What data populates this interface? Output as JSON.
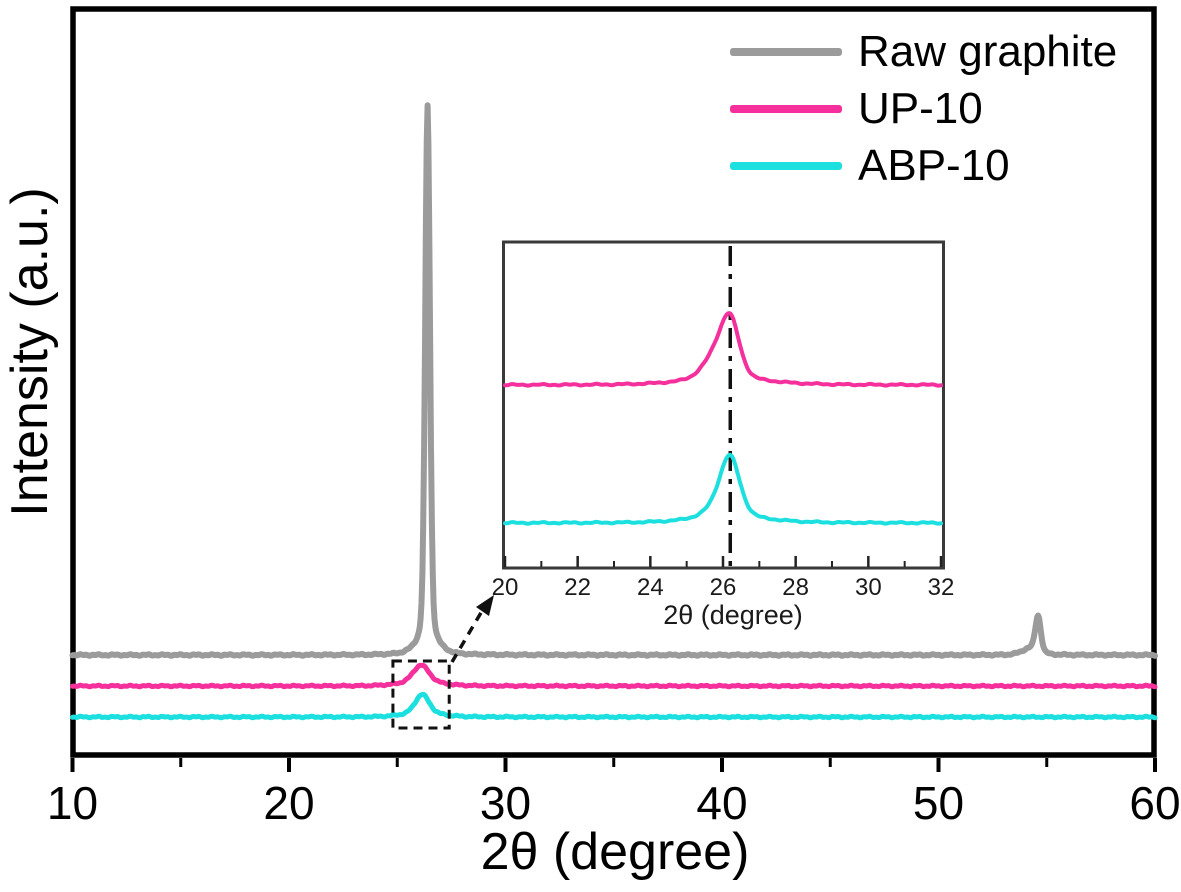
{
  "chart_data": {
    "type": "line",
    "description": "XRD patterns (intensity vs 2-theta) of three graphite samples, stacked traces",
    "title": "",
    "xlabel": "2θ (degree)",
    "ylabel": "Intensity (a.u.)",
    "x_range": [
      10,
      60
    ],
    "x_major_ticks": [
      10,
      20,
      30,
      40,
      50,
      60
    ],
    "x_minor_ticks": [
      15,
      25,
      35,
      45,
      55
    ],
    "y_ticks": "none (arbitrary units)",
    "grid": "off",
    "legend_position": "top-right",
    "series": [
      {
        "name": "Raw graphite",
        "color": "#9b9b9b",
        "trace_position": "top",
        "peaks": [
          {
            "center": 26.4,
            "rel_height": 1.0,
            "fwhm_deg": 0.26
          },
          {
            "center": 26.4,
            "rel_height": 0.022,
            "fwhm_deg": 1.2
          },
          {
            "center": 54.6,
            "rel_height": 0.066,
            "fwhm_deg": 0.3
          },
          {
            "center": 54.25,
            "rel_height": 0.012,
            "fwhm_deg": 0.9
          }
        ]
      },
      {
        "name": "UP-10",
        "color": "#f5309c",
        "trace_position": "middle",
        "peaks": [
          {
            "center": 26.1,
            "rel_height": 0.032,
            "fwhm_deg": 0.85
          },
          {
            "center": 26.1,
            "rel_height": 0.007,
            "fwhm_deg": 2.2
          }
        ]
      },
      {
        "name": "ABP-10",
        "color": "#1cdfdf",
        "trace_position": "bottom",
        "peaks": [
          {
            "center": 26.15,
            "rel_height": 0.035,
            "fwhm_deg": 0.75
          },
          {
            "center": 26.15,
            "rel_height": 0.007,
            "fwhm_deg": 2.0
          }
        ]
      }
    ],
    "inset": {
      "x_range": [
        20,
        32
      ],
      "x_major_ticks": [
        20,
        22,
        24,
        26,
        28,
        30,
        32
      ],
      "x_minor_ticks": [
        21,
        23,
        25,
        27,
        29,
        31
      ],
      "xlabel": "2θ (degree)",
      "reference_line_2theta": 26.2,
      "reference_line_style": "vertical dash-dot",
      "series": [
        {
          "name": "UP-10",
          "color": "#f5309c",
          "peaks": [
            {
              "center": 26.2,
              "rel_height": 1.0,
              "fwhm_deg": 0.6
            },
            {
              "center": 25.82,
              "rel_height": 0.45,
              "fwhm_deg": 0.85
            },
            {
              "center": 26.1,
              "rel_height": 0.09,
              "fwhm_deg": 2.8
            }
          ]
        },
        {
          "name": "ABP-10",
          "color": "#1cdfdf",
          "peaks": [
            {
              "center": 26.2,
              "rel_height": 1.0,
              "fwhm_deg": 0.62
            },
            {
              "center": 25.95,
              "rel_height": 0.25,
              "fwhm_deg": 0.9
            },
            {
              "center": 26.2,
              "rel_height": 0.09,
              "fwhm_deg": 2.5
            }
          ]
        }
      ]
    },
    "annotations": {
      "zoom_box_x_range": [
        24.8,
        27.4
      ],
      "zoom_box_style": "dashed rectangle around UP-10 and ABP-10 peaks",
      "zoom_arrow": "dashed arrow from zoom box pointing to inset"
    }
  }
}
